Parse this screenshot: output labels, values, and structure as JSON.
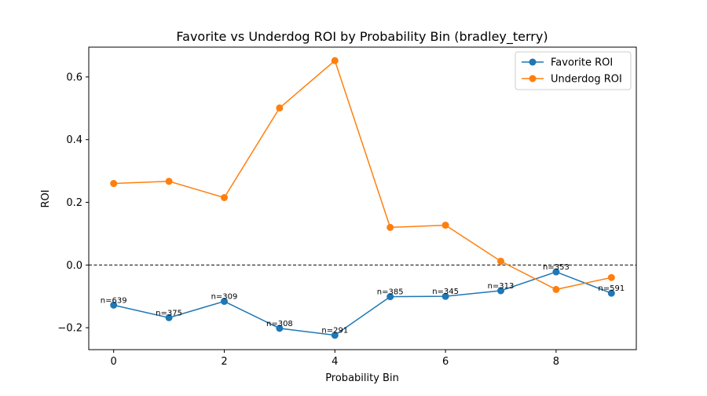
{
  "chart_data": {
    "type": "line",
    "title": "Favorite vs Underdog ROI by Probability Bin (bradley_terry)",
    "xlabel": "Probability Bin",
    "ylabel": "ROI",
    "xlim": [
      -0.45,
      9.45
    ],
    "ylim": [
      -0.27,
      0.695
    ],
    "xticks": [
      0,
      2,
      4,
      6,
      8
    ],
    "yticks": [
      -0.2,
      0.0,
      0.2,
      0.4,
      0.6
    ],
    "ytick_labels": [
      "−0.2",
      "0.0",
      "0.2",
      "0.4",
      "0.6"
    ],
    "grid": false,
    "legend_position": "top-right",
    "reference_line": {
      "y": 0.0,
      "style": "dashed",
      "color": "#000000"
    },
    "x": [
      0,
      1,
      2,
      3,
      4,
      5,
      6,
      7,
      8,
      9
    ],
    "series": [
      {
        "name": "Favorite ROI",
        "color": "#1f77b4",
        "marker": "circle",
        "values": [
          -0.128,
          -0.168,
          -0.116,
          -0.202,
          -0.224,
          -0.101,
          -0.1,
          -0.082,
          -0.022,
          -0.09
        ]
      },
      {
        "name": "Underdog ROI",
        "color": "#ff7f0e",
        "marker": "circle",
        "values": [
          0.26,
          0.267,
          0.215,
          0.501,
          0.652,
          0.12,
          0.127,
          0.012,
          -0.078,
          -0.04
        ]
      }
    ],
    "annotations": [
      {
        "x": 0,
        "y": -0.128,
        "text": "n=639"
      },
      {
        "x": 1,
        "y": -0.168,
        "text": "n=375"
      },
      {
        "x": 2,
        "y": -0.116,
        "text": "n=309"
      },
      {
        "x": 3,
        "y": -0.202,
        "text": "n=308"
      },
      {
        "x": 4,
        "y": -0.224,
        "text": "n=291"
      },
      {
        "x": 5,
        "y": -0.101,
        "text": "n=385"
      },
      {
        "x": 6,
        "y": -0.1,
        "text": "n=345"
      },
      {
        "x": 7,
        "y": -0.082,
        "text": "n=313"
      },
      {
        "x": 8,
        "y": -0.022,
        "text": "n=353"
      },
      {
        "x": 9,
        "y": -0.09,
        "text": "n=591"
      }
    ]
  }
}
